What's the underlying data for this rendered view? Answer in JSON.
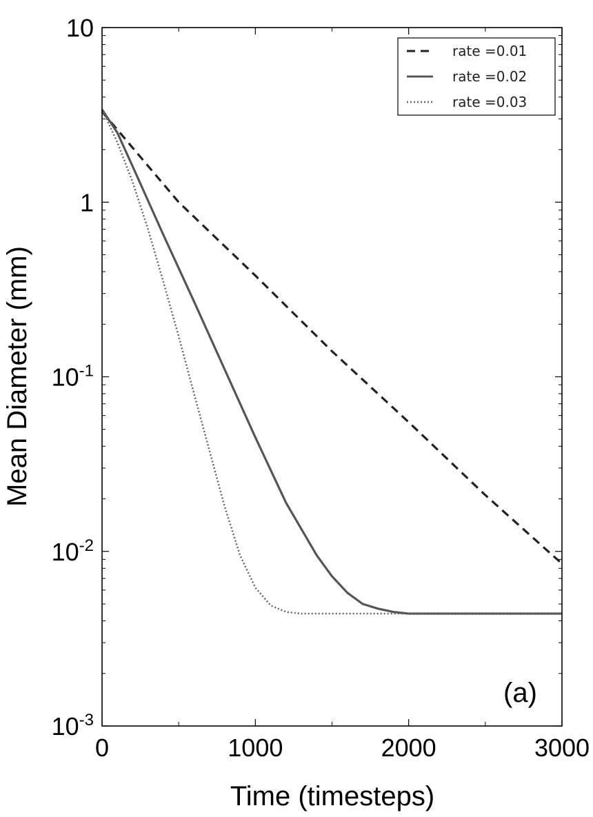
{
  "chart_data": {
    "type": "line",
    "xlabel": "Time (timesteps)",
    "ylabel": "Mean Diameter (mm)",
    "annotation": "(a)",
    "x_scale": "linear",
    "y_scale": "log",
    "xlim": [
      0,
      3000
    ],
    "ylim": [
      0.001,
      10
    ],
    "x_ticks": [
      0,
      1000,
      2000,
      3000
    ],
    "x_tick_labels": [
      "0",
      "1000",
      "2000",
      "3000"
    ],
    "y_ticks": [
      {
        "value": 0.001,
        "base": "10",
        "exp": "-3"
      },
      {
        "value": 0.01,
        "base": "10",
        "exp": "-2"
      },
      {
        "value": 0.1,
        "base": "10",
        "exp": "-1"
      },
      {
        "value": 1,
        "base": "1",
        "exp": ""
      },
      {
        "value": 10,
        "base": "10",
        "exp": ""
      }
    ],
    "grid": false,
    "legend_position": "top-right",
    "series": [
      {
        "name": "rate =0.01",
        "style": "dashed",
        "color": "#222222",
        "x": [
          0,
          500,
          1000,
          1500,
          2000,
          2500,
          3000
        ],
        "y": [
          3.3,
          1.0,
          0.38,
          0.14,
          0.055,
          0.021,
          0.0085
        ]
      },
      {
        "name": "rate =0.02",
        "style": "solid",
        "color": "#555555",
        "x": [
          0,
          100,
          200,
          400,
          600,
          800,
          1000,
          1200,
          1400,
          1500,
          1600,
          1700,
          1800,
          1900,
          2000,
          2200,
          2500,
          3000
        ],
        "y": [
          3.4,
          2.5,
          1.6,
          0.65,
          0.27,
          0.11,
          0.045,
          0.019,
          0.0095,
          0.0072,
          0.0058,
          0.005,
          0.0047,
          0.0045,
          0.0044,
          0.0044,
          0.0044,
          0.0044
        ]
      },
      {
        "name": "rate =0.03",
        "style": "dotted",
        "color": "#666666",
        "x": [
          0,
          100,
          200,
          300,
          400,
          500,
          600,
          700,
          800,
          900,
          1000,
          1100,
          1200,
          1300,
          1500,
          2000,
          3000
        ],
        "y": [
          3.4,
          2.2,
          1.3,
          0.7,
          0.35,
          0.17,
          0.08,
          0.038,
          0.018,
          0.0095,
          0.0062,
          0.0049,
          0.0045,
          0.0044,
          0.0044,
          0.0044,
          0.0044
        ]
      }
    ]
  }
}
